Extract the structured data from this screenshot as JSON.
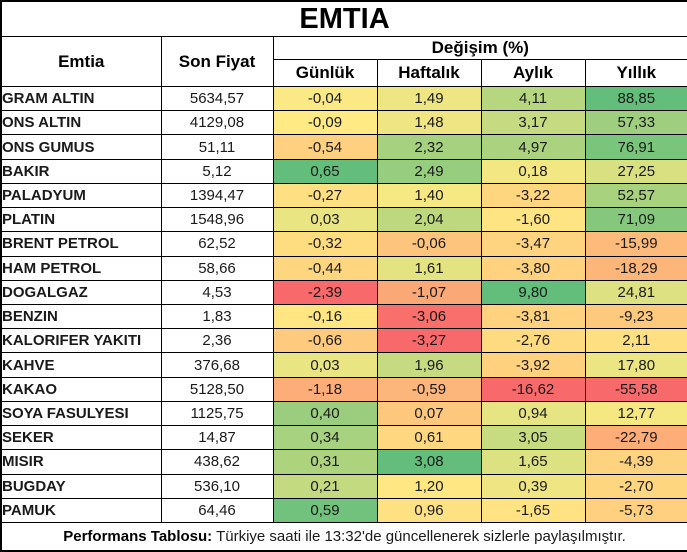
{
  "title": "EMTIA",
  "header": {
    "commodity": "Emtia",
    "last_price": "Son Fiyat",
    "change_group": "Değişim (%)",
    "periods": [
      "Günlük",
      "Haftalık",
      "Aylık",
      "Yıllık"
    ]
  },
  "rows": [
    {
      "name": "GRAM ALTIN",
      "price": "5634,57",
      "changes": [
        "-0,04",
        "1,49",
        "4,11",
        "88,85"
      ]
    },
    {
      "name": "ONS ALTIN",
      "price": "4129,08",
      "changes": [
        "-0,09",
        "1,48",
        "3,17",
        "57,33"
      ]
    },
    {
      "name": "ONS GUMUS",
      "price": "51,11",
      "changes": [
        "-0,54",
        "2,32",
        "4,97",
        "76,91"
      ]
    },
    {
      "name": "BAKIR",
      "price": "5,12",
      "changes": [
        "0,65",
        "2,49",
        "0,18",
        "27,25"
      ]
    },
    {
      "name": "PALADYUM",
      "price": "1394,47",
      "changes": [
        "-0,27",
        "1,40",
        "-3,22",
        "52,57"
      ]
    },
    {
      "name": "PLATIN",
      "price": "1548,96",
      "changes": [
        "0,03",
        "2,04",
        "-1,60",
        "71,09"
      ]
    },
    {
      "name": "BRENT PETROL",
      "price": "62,52",
      "changes": [
        "-0,32",
        "-0,06",
        "-3,47",
        "-15,99"
      ]
    },
    {
      "name": "HAM PETROL",
      "price": "58,66",
      "changes": [
        "-0,44",
        "1,61",
        "-3,80",
        "-18,29"
      ]
    },
    {
      "name": "DOGALGAZ",
      "price": "4,53",
      "changes": [
        "-2,39",
        "-1,07",
        "9,80",
        "24,81"
      ]
    },
    {
      "name": "BENZIN",
      "price": "1,83",
      "changes": [
        "-0,16",
        "-3,06",
        "-3,81",
        "-9,23"
      ]
    },
    {
      "name": "KALORIFER YAKITI",
      "price": "2,36",
      "changes": [
        "-0,66",
        "-3,27",
        "-2,76",
        "2,11"
      ]
    },
    {
      "name": "KAHVE",
      "price": "376,68",
      "changes": [
        "0,03",
        "1,96",
        "-3,92",
        "17,80"
      ]
    },
    {
      "name": "KAKAO",
      "price": "5128,50",
      "changes": [
        "-1,18",
        "-0,59",
        "-16,62",
        "-55,58"
      ]
    },
    {
      "name": "SOYA FASULYESI",
      "price": "1125,75",
      "changes": [
        "0,40",
        "0,07",
        "0,94",
        "12,77"
      ]
    },
    {
      "name": "SEKER",
      "price": "14,87",
      "changes": [
        "0,34",
        "0,61",
        "3,05",
        "-22,79"
      ]
    },
    {
      "name": "MISIR",
      "price": "438,62",
      "changes": [
        "0,31",
        "3,08",
        "1,65",
        "-4,39"
      ]
    },
    {
      "name": "BUGDAY",
      "price": "536,10",
      "changes": [
        "0,21",
        "1,20",
        "0,39",
        "-2,70"
      ]
    },
    {
      "name": "PAMUK",
      "price": "64,46",
      "changes": [
        "0,59",
        "0,96",
        "-1,65",
        "-5,73"
      ]
    }
  ],
  "footer": {
    "label": "Performans Tablosu:",
    "text": "Türkiye saati ile 13:32'de güncellenerek sizlerle paylaşılmıştır."
  },
  "colors": {
    "scale_min": "#F8696B",
    "scale_mid": "#FFEB84",
    "scale_max": "#63BE7B",
    "border": "#000000",
    "background": "#FFFFFF"
  }
}
